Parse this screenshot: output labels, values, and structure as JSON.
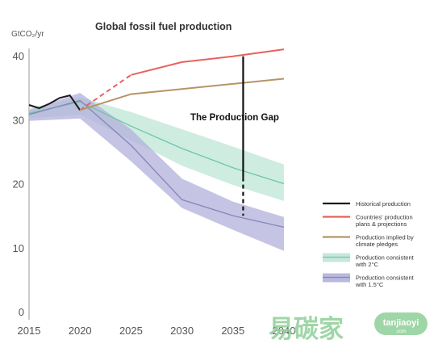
{
  "chart_data": {
    "type": "line",
    "title": "Global fossil fuel production",
    "ylabel": "GtCO₂/yr",
    "xlabel": "",
    "xlim": [
      2015,
      2040
    ],
    "ylim": [
      0,
      40
    ],
    "x_ticks": [
      2015,
      2020,
      2025,
      2030,
      2035,
      2040
    ],
    "y_ticks": [
      0,
      10,
      20,
      30,
      40
    ],
    "grid": false,
    "legend_position": "right",
    "annotation": "The Production Gap",
    "series": [
      {
        "name": "Historical production",
        "color": "#1a1a1a",
        "style": "solid",
        "points": [
          [
            2015,
            32.3
          ],
          [
            2016,
            31.8
          ],
          [
            2017,
            32.5
          ],
          [
            2018,
            33.4
          ],
          [
            2019,
            33.8
          ],
          [
            2020,
            31.5
          ]
        ]
      },
      {
        "name": "Countries' production plans & projections",
        "color": "#e8615e",
        "style": "dashed-then-solid",
        "points": [
          [
            2020,
            31.5
          ],
          [
            2025,
            37.0
          ],
          [
            2030,
            39.0
          ],
          [
            2035,
            39.9
          ],
          [
            2040,
            41.0
          ]
        ],
        "dashed_until": 2025
      },
      {
        "name": "Production implied by climate pledges",
        "color": "#b79466",
        "style": "solid",
        "points": [
          [
            2020,
            31.5
          ],
          [
            2025,
            34.0
          ],
          [
            2030,
            34.8
          ],
          [
            2035,
            35.6
          ],
          [
            2040,
            36.4
          ]
        ]
      },
      {
        "name": "Production consistent with 2°C",
        "color": "#6cc6a8",
        "band_color": "#bfe5d6",
        "style": "band",
        "points": [
          [
            2015,
            31.0
          ],
          [
            2020,
            32.8
          ],
          [
            2025,
            29.0
          ],
          [
            2030,
            25.5
          ],
          [
            2035,
            22.5
          ],
          [
            2040,
            20.0
          ]
        ],
        "upper": [
          [
            2015,
            31.8
          ],
          [
            2020,
            33.5
          ],
          [
            2025,
            31.2
          ],
          [
            2030,
            28.5
          ],
          [
            2035,
            25.8
          ],
          [
            2040,
            23.0
          ]
        ],
        "lower": [
          [
            2015,
            30.2
          ],
          [
            2020,
            30.8
          ],
          [
            2025,
            26.8
          ],
          [
            2030,
            22.8
          ],
          [
            2035,
            19.8
          ],
          [
            2040,
            17.3
          ]
        ]
      },
      {
        "name": "Production consistent with 1.5°C",
        "color": "#8884b8",
        "band_color": "#b1b0db",
        "style": "band",
        "points": [
          [
            2015,
            30.8
          ],
          [
            2020,
            33.0
          ],
          [
            2025,
            26.0
          ],
          [
            2030,
            17.5
          ],
          [
            2035,
            15.0
          ],
          [
            2040,
            13.2
          ]
        ],
        "upper": [
          [
            2015,
            31.5
          ],
          [
            2020,
            34.2
          ],
          [
            2025,
            28.5
          ],
          [
            2030,
            20.8
          ],
          [
            2035,
            17.2
          ],
          [
            2040,
            14.8
          ]
        ],
        "lower": [
          [
            2015,
            29.8
          ],
          [
            2020,
            30.2
          ],
          [
            2025,
            23.5
          ],
          [
            2030,
            16.2
          ],
          [
            2035,
            12.8
          ],
          [
            2040,
            9.5
          ]
        ]
      }
    ],
    "gap_line": {
      "x": 2036,
      "y_solid": [
        39.9,
        21.0
      ],
      "y_dashed": [
        21.0,
        15.0
      ]
    }
  },
  "watermark": {
    "text": "易碳家",
    "badge": "tanjiaoyi",
    "badge_domain": ".com"
  }
}
